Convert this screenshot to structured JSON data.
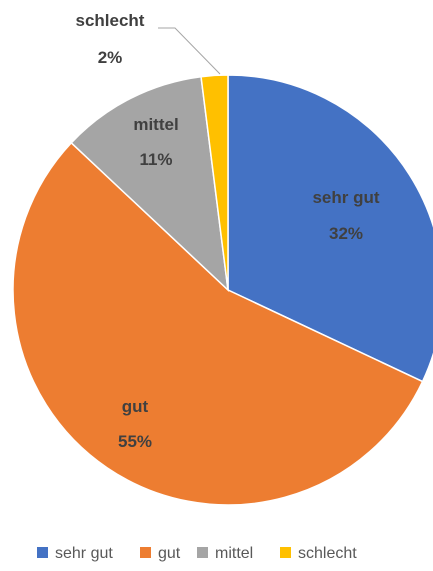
{
  "chart_data": {
    "type": "pie",
    "categories": [
      "sehr gut",
      "gut",
      "mittel",
      "schlecht"
    ],
    "values": [
      32,
      55,
      11,
      2
    ],
    "value_labels": [
      "32%",
      "55%",
      "11%",
      "2%"
    ],
    "colors": [
      "#4472C4",
      "#ED7D31",
      "#A5A5A5",
      "#FFC000"
    ],
    "start_angle_deg": 0,
    "direction": "clockwise",
    "legend": "bottom",
    "title": ""
  }
}
